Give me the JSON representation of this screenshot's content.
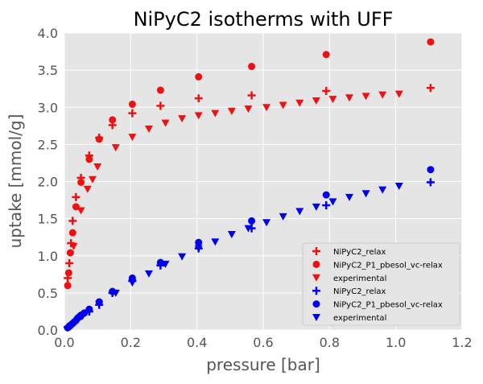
{
  "chart_data": {
    "type": "scatter",
    "title": "NiPyC2 isotherms with UFF",
    "xlabel": "pressure [bar]",
    "ylabel": "uptake [mmol/g]",
    "xlim": [
      0,
      1.2
    ],
    "ylim": [
      0,
      4.0
    ],
    "x_ticks": [
      "0.0",
      "0.2",
      "0.4",
      "0.6",
      "0.8",
      "1.0",
      "1.2"
    ],
    "y_ticks": [
      "0.0",
      "0.5",
      "1.0",
      "1.5",
      "2.0",
      "2.5",
      "3.0",
      "3.5",
      "4.0"
    ],
    "grid": true,
    "legend_position": "lower-right",
    "background": "#e5e5e5",
    "series": [
      {
        "name": "NiPyC2_relax",
        "marker": "plus",
        "color": "#ee1111",
        "points": [
          [
            0.01,
            0.7
          ],
          [
            0.015,
            0.9
          ],
          [
            0.02,
            1.17
          ],
          [
            0.025,
            1.47
          ],
          [
            0.035,
            1.79
          ],
          [
            0.05,
            2.05
          ],
          [
            0.075,
            2.35
          ],
          [
            0.105,
            2.59
          ],
          [
            0.145,
            2.76
          ],
          [
            0.205,
            2.92
          ],
          [
            0.29,
            3.02
          ],
          [
            0.405,
            3.12
          ],
          [
            0.565,
            3.16
          ],
          [
            0.79,
            3.22
          ],
          [
            1.105,
            3.26
          ]
        ]
      },
      {
        "name": "NiPyC2_P1_pbesol_vc-relax",
        "marker": "circle",
        "color": "#ee1111",
        "points": [
          [
            0.01,
            0.6
          ],
          [
            0.013,
            0.77
          ],
          [
            0.018,
            1.04
          ],
          [
            0.025,
            1.31
          ],
          [
            0.035,
            1.66
          ],
          [
            0.05,
            1.99
          ],
          [
            0.075,
            2.3
          ],
          [
            0.105,
            2.57
          ],
          [
            0.145,
            2.83
          ],
          [
            0.205,
            3.04
          ],
          [
            0.29,
            3.23
          ],
          [
            0.405,
            3.41
          ],
          [
            0.565,
            3.55
          ],
          [
            0.79,
            3.71
          ],
          [
            1.105,
            3.88
          ]
        ]
      },
      {
        "name": "experimental",
        "marker": "triangle-down",
        "color": "#ee1111",
        "points": [
          [
            0.028,
            1.13
          ],
          [
            0.05,
            1.61
          ],
          [
            0.07,
            1.9
          ],
          [
            0.085,
            2.03
          ],
          [
            0.1,
            2.2
          ],
          [
            0.155,
            2.46
          ],
          [
            0.205,
            2.6
          ],
          [
            0.255,
            2.71
          ],
          [
            0.305,
            2.79
          ],
          [
            0.355,
            2.85
          ],
          [
            0.405,
            2.89
          ],
          [
            0.455,
            2.92
          ],
          [
            0.505,
            2.95
          ],
          [
            0.555,
            2.98
          ],
          [
            0.61,
            3.0
          ],
          [
            0.66,
            3.03
          ],
          [
            0.71,
            3.06
          ],
          [
            0.76,
            3.09
          ],
          [
            0.81,
            3.11
          ],
          [
            0.86,
            3.13
          ],
          [
            0.91,
            3.15
          ],
          [
            0.96,
            3.17
          ],
          [
            1.01,
            3.18
          ]
        ]
      },
      {
        "name": "NiPyC2_relax",
        "marker": "plus",
        "color": "#0000ee",
        "points": [
          [
            0.01,
            0.04
          ],
          [
            0.02,
            0.07
          ],
          [
            0.03,
            0.11
          ],
          [
            0.04,
            0.15
          ],
          [
            0.05,
            0.19
          ],
          [
            0.075,
            0.25
          ],
          [
            0.105,
            0.34
          ],
          [
            0.145,
            0.5
          ],
          [
            0.205,
            0.66
          ],
          [
            0.29,
            0.87
          ],
          [
            0.405,
            1.1
          ],
          [
            0.565,
            1.37
          ],
          [
            0.79,
            1.68
          ],
          [
            1.105,
            1.99
          ]
        ]
      },
      {
        "name": "NiPyC2_P1_pbesol_vc-relax",
        "marker": "circle",
        "color": "#0000ee",
        "points": [
          [
            0.01,
            0.03
          ],
          [
            0.015,
            0.05
          ],
          [
            0.02,
            0.07
          ],
          [
            0.025,
            0.09
          ],
          [
            0.03,
            0.11
          ],
          [
            0.035,
            0.13
          ],
          [
            0.04,
            0.16
          ],
          [
            0.045,
            0.18
          ],
          [
            0.05,
            0.2
          ],
          [
            0.06,
            0.23
          ],
          [
            0.075,
            0.28
          ],
          [
            0.105,
            0.38
          ],
          [
            0.145,
            0.52
          ],
          [
            0.205,
            0.7
          ],
          [
            0.29,
            0.91
          ],
          [
            0.405,
            1.18
          ],
          [
            0.565,
            1.47
          ],
          [
            0.79,
            1.82
          ],
          [
            1.105,
            2.16
          ]
        ]
      },
      {
        "name": "experimental",
        "marker": "triangle-down",
        "color": "#0000ee",
        "points": [
          [
            0.055,
            0.19
          ],
          [
            0.105,
            0.35
          ],
          [
            0.155,
            0.5
          ],
          [
            0.205,
            0.64
          ],
          [
            0.255,
            0.76
          ],
          [
            0.305,
            0.89
          ],
          [
            0.355,
            0.99
          ],
          [
            0.405,
            1.1
          ],
          [
            0.455,
            1.19
          ],
          [
            0.505,
            1.29
          ],
          [
            0.555,
            1.37
          ],
          [
            0.61,
            1.45
          ],
          [
            0.66,
            1.53
          ],
          [
            0.71,
            1.6
          ],
          [
            0.76,
            1.66
          ],
          [
            0.81,
            1.73
          ],
          [
            0.86,
            1.79
          ],
          [
            0.91,
            1.84
          ],
          [
            0.96,
            1.89
          ],
          [
            1.01,
            1.94
          ]
        ]
      }
    ]
  }
}
